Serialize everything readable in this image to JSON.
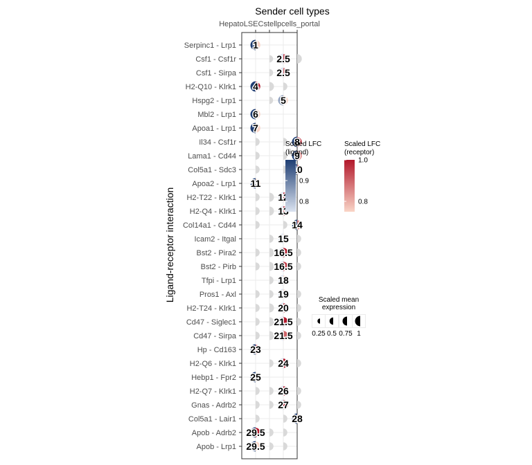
{
  "chart_data": {
    "type": "dot-matrix",
    "title": "Sender cell types",
    "ylabel": "Ligand-receptor interaction",
    "x_categories": [
      "Hepatocytes",
      "LSECs",
      "Stellate cells",
      "LSECs_portal"
    ],
    "x_tick_text": "HepatoLSECstellpcells_portal",
    "rows": [
      {
        "label": "Serpinc1 - Lrp1",
        "rank": "1",
        "col": 0,
        "lig": 1.0,
        "rec": 0.75,
        "exp": [
          1.0,
          0,
          0,
          0
        ]
      },
      {
        "label": "Csf1 - Csf1r",
        "rank": "2.5",
        "col": 2,
        "lig": 0.75,
        "rec": 0.95,
        "exp": [
          0,
          0.5,
          0.75,
          0.8
        ]
      },
      {
        "label": "Csf1 - Sirpa",
        "rank": "2.5",
        "col": 2,
        "lig": 0.75,
        "rec": 0.9,
        "exp": [
          0,
          0.5,
          0.75,
          0
        ]
      },
      {
        "label": "H2-Q10 - Klrk1",
        "rank": "4",
        "col": 0,
        "lig": 1.0,
        "rec": 1.0,
        "exp": [
          1.0,
          0.75,
          0.6,
          0
        ]
      },
      {
        "label": "Hspg2 - Lrp1",
        "rank": "5",
        "col": 2,
        "lig": 0.85,
        "rec": 0.75,
        "exp": [
          0,
          0.5,
          0.75,
          0
        ]
      },
      {
        "label": "Mbl2 - Lrp1",
        "rank": "6",
        "col": 0,
        "lig": 1.0,
        "rec": 0.75,
        "exp": [
          1.0,
          0,
          0,
          0
        ]
      },
      {
        "label": "Apoa1 - Lrp1",
        "rank": "7",
        "col": 0,
        "lig": 1.0,
        "rec": 0.75,
        "exp": [
          1.0,
          0,
          0,
          0
        ]
      },
      {
        "label": "Il34 - Csf1r",
        "rank": "8",
        "col": 3,
        "lig": 1.0,
        "rec": 0.95,
        "exp": [
          0.6,
          0,
          0.6,
          1.0
        ]
      },
      {
        "label": "Lama1 - Cd44",
        "rank": "9",
        "col": 3,
        "lig": 1.0,
        "rec": 0.85,
        "exp": [
          0.6,
          0,
          0.6,
          1.0
        ]
      },
      {
        "label": "Col5a1 - Sdc3",
        "rank": "10",
        "col": 3,
        "lig": 1.0,
        "rec": 0.85,
        "exp": [
          0.6,
          0,
          0.6,
          1.0
        ]
      },
      {
        "label": "Apoa2 - Lrp1",
        "rank": "11",
        "col": 0,
        "lig": 1.0,
        "rec": 0.75,
        "exp": [
          1.0,
          0,
          0,
          0
        ]
      },
      {
        "label": "H2-T22 - Klrk1",
        "rank": "12",
        "col": 2,
        "lig": 0.75,
        "rec": 1.0,
        "exp": [
          0.6,
          0.75,
          0.9,
          0
        ]
      },
      {
        "label": "H2-Q4 - Klrk1",
        "rank": "13",
        "col": 2,
        "lig": 0.75,
        "rec": 1.0,
        "exp": [
          0.6,
          0.75,
          0.9,
          0
        ]
      },
      {
        "label": "Col14a1 - Cd44",
        "rank": "14",
        "col": 3,
        "lig": 1.0,
        "rec": 0.85,
        "exp": [
          0.6,
          0,
          0.6,
          1.0
        ]
      },
      {
        "label": "Icam2 - Itgal",
        "rank": "15",
        "col": 2,
        "lig": 0.75,
        "rec": 0.75,
        "exp": [
          0,
          0.6,
          0.9,
          0.6
        ]
      },
      {
        "label": "Bst2 - Pira2",
        "rank": "16.5",
        "col": 2,
        "lig": 0.75,
        "rec": 1.0,
        "exp": [
          0.6,
          0.75,
          0.9,
          0.6
        ]
      },
      {
        "label": "Bst2 - Pirb",
        "rank": "16.5",
        "col": 2,
        "lig": 0.75,
        "rec": 0.95,
        "exp": [
          0.6,
          0.75,
          0.9,
          0.6
        ]
      },
      {
        "label": "Tfpi - Lrp1",
        "rank": "18",
        "col": 2,
        "lig": 0.75,
        "rec": 0.75,
        "exp": [
          0,
          0.6,
          0.75,
          0
        ]
      },
      {
        "label": "Pros1 - Axl",
        "rank": "19",
        "col": 2,
        "lig": 0.75,
        "rec": 0.75,
        "exp": [
          0.6,
          0.6,
          0.75,
          0.6
        ]
      },
      {
        "label": "H2-T24 - Klrk1",
        "rank": "20",
        "col": 2,
        "lig": 0.75,
        "rec": 0.95,
        "exp": [
          0.6,
          0.75,
          0.9,
          0.6
        ]
      },
      {
        "label": "Cd47 - Siglec1",
        "rank": "21.5",
        "col": 2,
        "lig": 0.75,
        "rec": 1.0,
        "exp": [
          0.6,
          0.75,
          0.9,
          0.6
        ]
      },
      {
        "label": "Cd47 - Sirpa",
        "rank": "21.5",
        "col": 2,
        "lig": 0.75,
        "rec": 0.9,
        "exp": [
          0.6,
          0.75,
          0.9,
          0.6
        ]
      },
      {
        "label": "Hp - Cd163",
        "rank": "23",
        "col": 0,
        "lig": 1.0,
        "rec": 0.9,
        "exp": [
          1.0,
          0,
          0,
          0
        ]
      },
      {
        "label": "H2-Q6 - Klrk1",
        "rank": "24",
        "col": 2,
        "lig": 0.75,
        "rec": 1.0,
        "exp": [
          0,
          0.6,
          0.9,
          0.6
        ]
      },
      {
        "label": "Hebp1 - Fpr2",
        "rank": "25",
        "col": 0,
        "lig": 1.0,
        "rec": 0.75,
        "exp": [
          1.0,
          0,
          0,
          0
        ]
      },
      {
        "label": "H2-Q7 - Klrk1",
        "rank": "26",
        "col": 2,
        "lig": 0.75,
        "rec": 1.0,
        "exp": [
          0.6,
          0.6,
          0.9,
          0.6
        ]
      },
      {
        "label": "Gnas - Adrb2",
        "rank": "27",
        "col": 2,
        "lig": 0.75,
        "rec": 1.0,
        "exp": [
          0.6,
          0.6,
          0.9,
          0.6
        ]
      },
      {
        "label": "Col5a1 - Lair1",
        "rank": "28",
        "col": 3,
        "lig": 1.0,
        "rec": 0.75,
        "exp": [
          0.6,
          0,
          0.6,
          1.0
        ]
      },
      {
        "label": "Apob - Adrb2",
        "rank": "29.5",
        "col": 0,
        "lig": 1.0,
        "rec": 1.0,
        "exp": [
          1.0,
          0.6,
          0.6,
          0
        ]
      },
      {
        "label": "Apob - Lrp1",
        "rank": "29.5",
        "col": 0,
        "lig": 1.0,
        "rec": 0.75,
        "exp": [
          1.0,
          0.6,
          0.6,
          0
        ]
      }
    ],
    "legends": {
      "ligand": {
        "title": "Scaled LFC\n(ligand)",
        "ticks": [
          0.8,
          0.9
        ],
        "range": [
          0.75,
          1.0
        ],
        "low_color": "#dbe3f0",
        "high_color": "#1f3e73"
      },
      "receptor": {
        "title": "Scaled LFC\n(receptor)",
        "ticks": [
          0.8,
          1.0
        ],
        "range": [
          0.75,
          1.0
        ],
        "low_color": "#f9d5c7",
        "high_color": "#b2182b"
      },
      "size": {
        "title": "Scaled mean\nexpression",
        "values": [
          0.25,
          0.5,
          0.75,
          1
        ],
        "labels": [
          "0.25",
          "0.5",
          "0.75",
          "1"
        ]
      }
    },
    "colors": {
      "empty_dot": "#d9d9d9",
      "grid": "#ebebeb",
      "panel_border": "#333333"
    }
  }
}
